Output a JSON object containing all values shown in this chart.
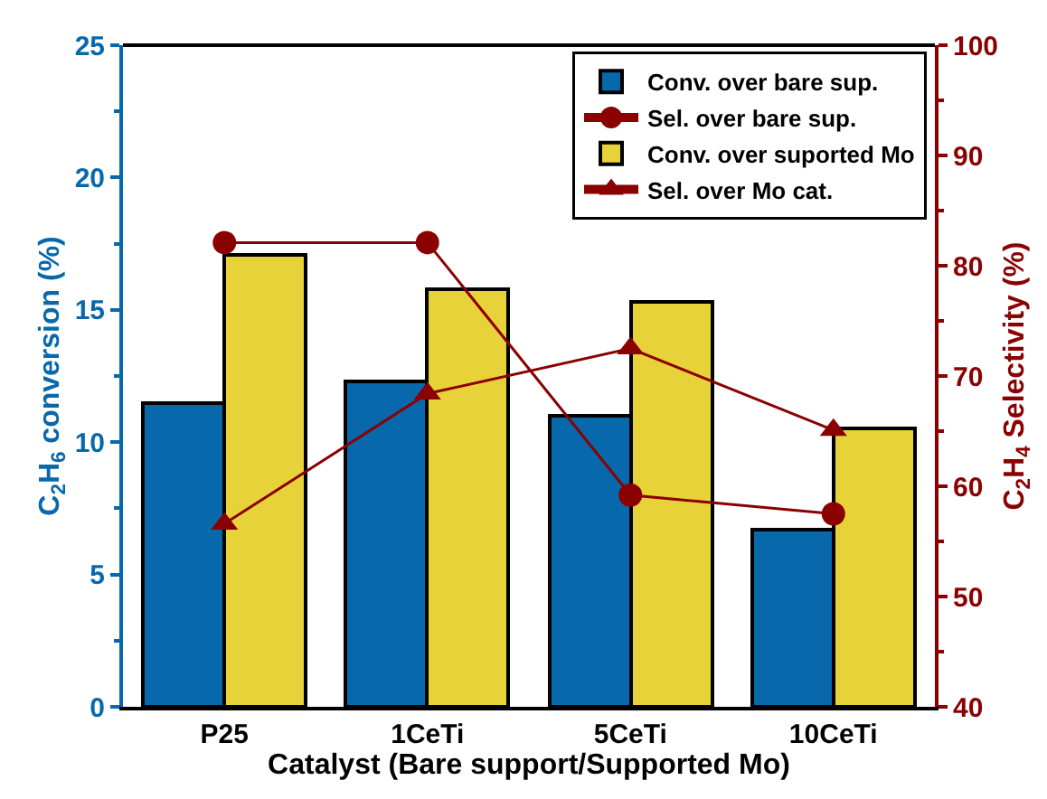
{
  "chart_data": {
    "type": "bar",
    "xlabel": "Catalyst (Bare support/Supported Mo)",
    "ylabel": "C$_{2}$H$_{6}$ conversion (%)",
    "y2label": "C$_{2}$H$_{4}$ Selectivity (%)",
    "categories": [
      "P25",
      "1CeTi",
      "5CeTi",
      "10CeTi"
    ],
    "series": [
      {
        "name": "Conv. over bare sup.",
        "color": "#0868ac",
        "values": [
          11.5,
          12.3,
          11.0,
          6.7
        ]
      },
      {
        "name": "Sel. over bare sup.",
        "type": "line",
        "axis": "y2",
        "marker": "circle",
        "color": "#8b0000",
        "values": [
          82.1,
          82.1,
          59.2,
          57.5
        ]
      },
      {
        "name": "Conv. over suported Mo",
        "color": "#e8d239",
        "values": [
          17.1,
          15.8,
          15.3,
          10.5
        ]
      },
      {
        "name": "Sel. over Mo cat.",
        "type": "line",
        "axis": "y2",
        "marker": "triangle",
        "color": "#8b0000",
        "values": [
          56.6,
          68.4,
          72.5,
          65.1
        ]
      }
    ],
    "ylim": [
      0,
      25
    ],
    "yticks": [
      0,
      5,
      10,
      15,
      20,
      25
    ],
    "y2lim": [
      40,
      100
    ],
    "y2ticks": [
      40,
      50,
      60,
      70,
      80,
      90,
      100
    ],
    "legend": "top right"
  }
}
